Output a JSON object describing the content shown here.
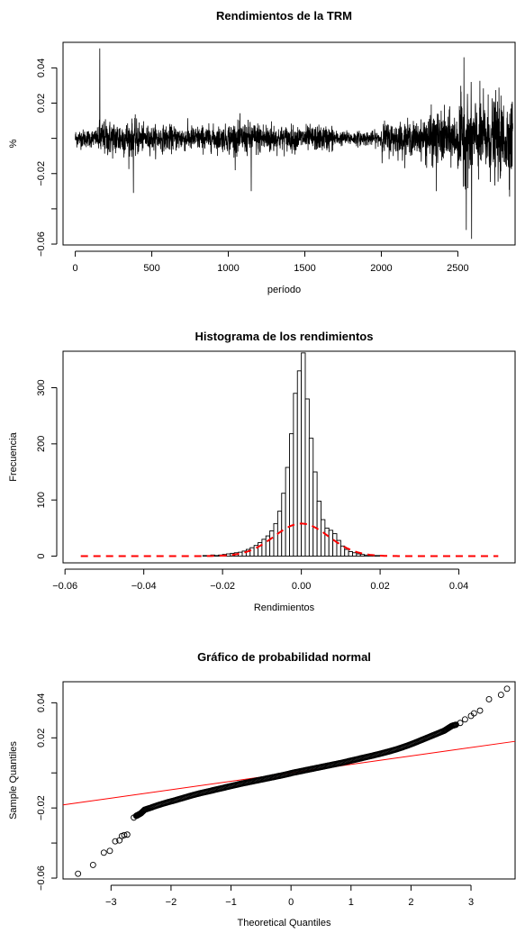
{
  "chart_data": [
    {
      "type": "line",
      "title": "Rendimientos de la TRM",
      "xlabel": "período",
      "ylabel": "%",
      "xlim": [
        -80,
        2880
      ],
      "ylim": [
        -0.0605,
        0.0545
      ],
      "xticks": [
        0,
        500,
        1000,
        1500,
        2000,
        2500
      ],
      "xtick_labels": [
        "0",
        "500",
        "1000",
        "1500",
        "2000",
        "2500"
      ],
      "yticks": [
        -0.06,
        -0.04,
        -0.02,
        0.0,
        0.02,
        0.04
      ],
      "ytick_labels": [
        "-0.06",
        "",
        "-0.02",
        "",
        "0.02",
        "0.04"
      ],
      "n": 2860,
      "volatility_regimes": [
        {
          "from": 0,
          "to": 150,
          "sd": 0.0025
        },
        {
          "from": 150,
          "to": 420,
          "sd": 0.005
        },
        {
          "from": 420,
          "to": 1000,
          "sd": 0.0035
        },
        {
          "from": 1000,
          "to": 1300,
          "sd": 0.0045
        },
        {
          "from": 1300,
          "to": 1700,
          "sd": 0.0035
        },
        {
          "from": 1700,
          "to": 2000,
          "sd": 0.002
        },
        {
          "from": 2000,
          "to": 2280,
          "sd": 0.0045
        },
        {
          "from": 2280,
          "to": 2500,
          "sd": 0.007
        },
        {
          "from": 2500,
          "to": 2860,
          "sd": 0.011
        }
      ],
      "spikes": [
        {
          "x": 160,
          "y": 0.051
        },
        {
          "x": 380,
          "y": -0.031
        },
        {
          "x": 1150,
          "y": -0.03
        },
        {
          "x": 2360,
          "y": -0.03
        },
        {
          "x": 2540,
          "y": 0.046
        },
        {
          "x": 2555,
          "y": -0.052
        },
        {
          "x": 2590,
          "y": -0.057
        }
      ]
    },
    {
      "type": "bar",
      "title": "Histograma de los rendimientos",
      "xlabel": "Rendimientos",
      "ylabel": "Frecuencia",
      "xlim": [
        -0.0605,
        0.0545
      ],
      "ylim": [
        -12,
        365
      ],
      "xticks": [
        -0.06,
        -0.04,
        -0.02,
        0.0,
        0.02,
        0.04
      ],
      "xtick_labels": [
        "-0.06",
        "-0.04",
        "-0.02",
        "0.00",
        "0.02",
        "0.04"
      ],
      "yticks": [
        0,
        100,
        200,
        300
      ],
      "ytick_labels": [
        "0",
        "100",
        "200",
        "300"
      ],
      "bin_width": 0.001,
      "bin_start": -0.025,
      "counts": [
        1,
        0,
        2,
        1,
        2,
        3,
        4,
        5,
        6,
        7,
        9,
        12,
        15,
        19,
        24,
        30,
        36,
        45,
        58,
        80,
        112,
        158,
        218,
        290,
        330,
        362,
        280,
        210,
        150,
        98,
        65,
        50,
        46,
        40,
        28,
        18,
        12,
        8,
        6,
        4,
        3,
        2,
        2,
        1,
        1,
        1
      ],
      "normal_curve": {
        "mean": 0.0,
        "sd": 0.0069,
        "color": "#ff0000"
      }
    },
    {
      "type": "scatter",
      "title": "Gráfico de probabilidad normal",
      "xlabel": "Theoretical Quantiles",
      "ylabel": "Sample Quantiles",
      "xlim": [
        -3.8,
        3.75
      ],
      "ylim": [
        -0.0605,
        0.052
      ],
      "xticks": [
        -3,
        -2,
        -1,
        0,
        1,
        2,
        3
      ],
      "xtick_labels": [
        "-3",
        "-2",
        "-1",
        "0",
        "1",
        "2",
        "3"
      ],
      "yticks": [
        -0.06,
        -0.04,
        -0.02,
        0.0,
        0.02,
        0.04
      ],
      "ytick_labels": [
        "-0.06",
        "",
        "-0.02",
        "",
        "0.02",
        "0.04"
      ],
      "line": {
        "intercept": 0.0,
        "slope": 0.0048,
        "color": "#ff0000"
      },
      "points": [
        [
          -3.55,
          -0.0575
        ],
        [
          -3.3,
          -0.0525
        ],
        [
          -3.12,
          -0.0455
        ],
        [
          -3.02,
          -0.0445
        ],
        [
          -2.93,
          -0.039
        ],
        [
          -2.86,
          -0.0385
        ],
        [
          -2.82,
          -0.036
        ],
        [
          -2.78,
          -0.0355
        ],
        [
          -2.73,
          -0.0352
        ],
        [
          -2.62,
          -0.0255
        ],
        [
          -2.58,
          -0.0245
        ],
        [
          -2.55,
          -0.024
        ],
        [
          -2.5,
          -0.023
        ],
        [
          -2.44,
          -0.021
        ],
        [
          -2.35,
          -0.02
        ],
        [
          -2.25,
          -0.0188
        ],
        [
          -2.15,
          -0.0177
        ],
        [
          -2.05,
          -0.0167
        ],
        [
          -1.95,
          -0.0158
        ],
        [
          -1.85,
          -0.0148
        ],
        [
          -1.75,
          -0.0138
        ],
        [
          -1.65,
          -0.0128
        ],
        [
          -1.55,
          -0.0119
        ],
        [
          -1.45,
          -0.0111
        ],
        [
          -1.35,
          -0.0103
        ],
        [
          -1.25,
          -0.0095
        ],
        [
          -1.15,
          -0.0087
        ],
        [
          -1.05,
          -0.0079
        ],
        [
          -0.95,
          -0.0071
        ],
        [
          -0.85,
          -0.0063
        ],
        [
          -0.75,
          -0.0056
        ],
        [
          -0.65,
          -0.0049
        ],
        [
          -0.55,
          -0.0042
        ],
        [
          -0.45,
          -0.0035
        ],
        [
          -0.35,
          -0.0028
        ],
        [
          -0.25,
          -0.0021
        ],
        [
          -0.15,
          -0.0014
        ],
        [
          -0.05,
          -0.0006
        ],
        [
          0.05,
          0.0002
        ],
        [
          0.15,
          0.0009
        ],
        [
          0.25,
          0.0016
        ],
        [
          0.35,
          0.0023
        ],
        [
          0.45,
          0.003
        ],
        [
          0.55,
          0.0037
        ],
        [
          0.65,
          0.0044
        ],
        [
          0.75,
          0.0051
        ],
        [
          0.85,
          0.0058
        ],
        [
          0.95,
          0.0066
        ],
        [
          1.05,
          0.0074
        ],
        [
          1.15,
          0.0082
        ],
        [
          1.25,
          0.009
        ],
        [
          1.35,
          0.0098
        ],
        [
          1.45,
          0.0106
        ],
        [
          1.55,
          0.0115
        ],
        [
          1.65,
          0.0124
        ],
        [
          1.75,
          0.0134
        ],
        [
          1.85,
          0.0145
        ],
        [
          1.95,
          0.0157
        ],
        [
          2.05,
          0.017
        ],
        [
          2.15,
          0.0184
        ],
        [
          2.25,
          0.0198
        ],
        [
          2.35,
          0.0212
        ],
        [
          2.45,
          0.0226
        ],
        [
          2.55,
          0.024
        ],
        [
          2.62,
          0.0255
        ],
        [
          2.68,
          0.0268
        ],
        [
          2.75,
          0.0275
        ],
        [
          2.82,
          0.0285
        ],
        [
          2.9,
          0.0305
        ],
        [
          3.0,
          0.0325
        ],
        [
          3.05,
          0.034
        ],
        [
          3.15,
          0.0355
        ],
        [
          3.3,
          0.042
        ],
        [
          3.5,
          0.0445
        ],
        [
          3.6,
          0.048
        ]
      ]
    }
  ]
}
